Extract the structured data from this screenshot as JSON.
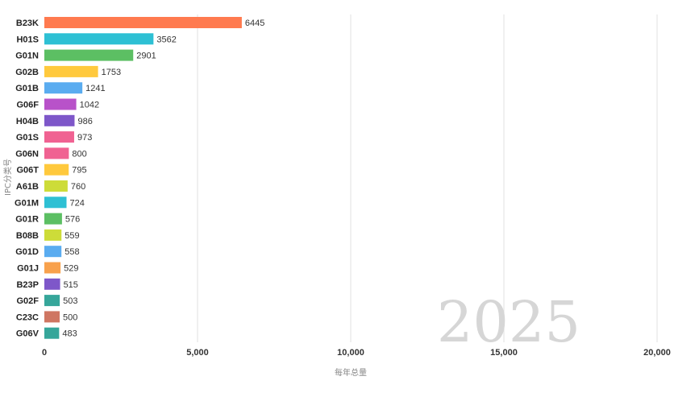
{
  "chart_data": {
    "type": "bar",
    "orientation": "horizontal",
    "categories": [
      "B23K",
      "H01S",
      "G01N",
      "G02B",
      "G01B",
      "G06F",
      "H04B",
      "G01S",
      "G06N",
      "G06T",
      "A61B",
      "G01M",
      "G01R",
      "B08B",
      "G01D",
      "G01J",
      "B23P",
      "G02F",
      "C23C",
      "G06V"
    ],
    "values": [
      6445,
      3562,
      2901,
      1753,
      1241,
      1042,
      986,
      973,
      800,
      795,
      760,
      724,
      576,
      559,
      558,
      529,
      515,
      503,
      500,
      483
    ],
    "colors": [
      "#ff7a4f",
      "#2ec0d4",
      "#5cbf63",
      "#ffc93d",
      "#5aacf0",
      "#b852c9",
      "#7e57c9",
      "#f06292",
      "#f06292",
      "#ffc93d",
      "#cddc39",
      "#2ec0d4",
      "#5cbf63",
      "#cddc39",
      "#5aacf0",
      "#f8a14c",
      "#7e57c9",
      "#36a69a",
      "#cf7662",
      "#36a69a"
    ],
    "xlabel": "每年总量",
    "ylabel": "IPC分类号",
    "xlim": [
      0,
      20000
    ],
    "xticks": [
      0,
      5000,
      10000,
      15000,
      20000
    ],
    "xtick_labels": [
      "0",
      "5,000",
      "10,000",
      "15,000",
      "20,000"
    ],
    "year": "2025",
    "grid": true
  }
}
